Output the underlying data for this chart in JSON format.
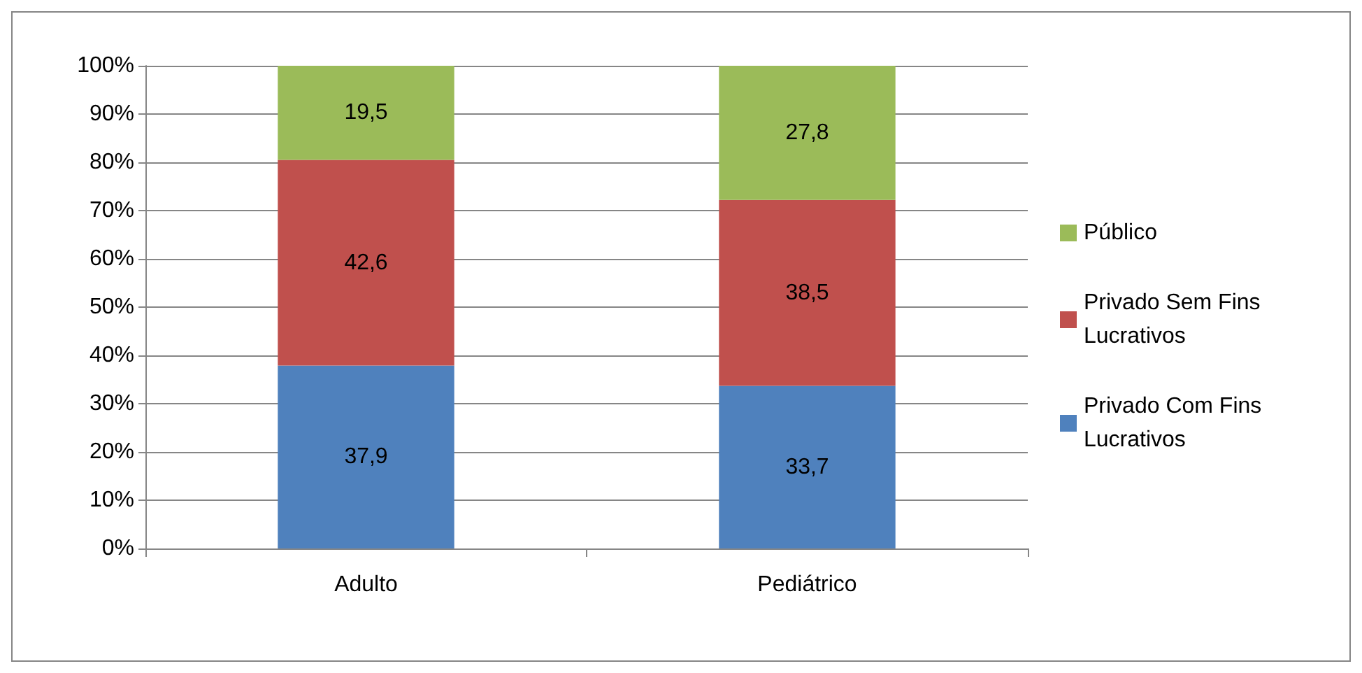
{
  "chart_data": {
    "type": "bar",
    "stacked": true,
    "categories": [
      "Adulto",
      "Pediátrico"
    ],
    "series": [
      {
        "name": "Privado Com Fins Lucrativos",
        "color": "#4f81bd",
        "values": [
          37.9,
          33.7
        ],
        "value_labels": [
          "37,9",
          "33,7"
        ]
      },
      {
        "name": "Privado Sem Fins Lucrativos",
        "color": "#c0504d",
        "values": [
          42.6,
          38.5
        ],
        "value_labels": [
          "42,6",
          "38,5"
        ]
      },
      {
        "name": "Público",
        "color": "#9bbb59",
        "values": [
          19.5,
          27.8
        ],
        "value_labels": [
          "19,5",
          "27,8"
        ]
      }
    ],
    "ylim": [
      0,
      100
    ],
    "yticks": [
      {
        "value": 0,
        "label": "0%"
      },
      {
        "value": 10,
        "label": "10%"
      },
      {
        "value": 20,
        "label": "20%"
      },
      {
        "value": 30,
        "label": "30%"
      },
      {
        "value": 40,
        "label": "40%"
      },
      {
        "value": 50,
        "label": "50%"
      },
      {
        "value": 60,
        "label": "60%"
      },
      {
        "value": 70,
        "label": "70%"
      },
      {
        "value": 80,
        "label": "80%"
      },
      {
        "value": 90,
        "label": "90%"
      },
      {
        "value": 100,
        "label": "100%"
      }
    ],
    "grid": "y",
    "legend": "right"
  }
}
